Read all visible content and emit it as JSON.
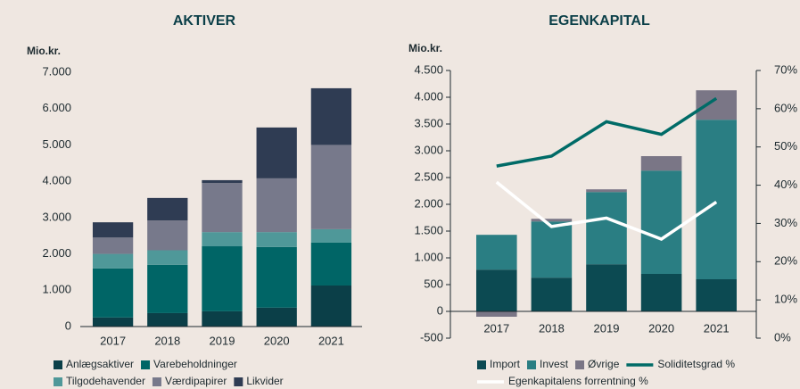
{
  "chart_data": [
    {
      "type": "bar",
      "stacked": true,
      "title": "AKTIVER",
      "y_label": "Mio.kr.",
      "categories": [
        "2017",
        "2018",
        "2019",
        "2020",
        "2021"
      ],
      "series": [
        {
          "name": "Anlægsaktiver",
          "color": "#0b3f48",
          "values": [
            250,
            370,
            420,
            520,
            1130
          ]
        },
        {
          "name": "Varebeholdninger",
          "color": "#006566",
          "values": [
            1350,
            1330,
            1790,
            1670,
            1180
          ]
        },
        {
          "name": "Tilgodehavender",
          "color": "#4f9899",
          "values": [
            400,
            400,
            390,
            410,
            370
          ]
        },
        {
          "name": "Værdipapirer",
          "color": "#77798b",
          "values": [
            450,
            820,
            1350,
            1480,
            2320
          ]
        },
        {
          "name": "Likvider",
          "color": "#2f3c53",
          "values": [
            420,
            620,
            80,
            1400,
            1560
          ]
        }
      ],
      "ylim": [
        0,
        7000
      ],
      "yticks": [
        0,
        {
          "value": 1000,
          "label": "1.000"
        },
        {
          "value": 2000,
          "label": "2.000"
        },
        {
          "value": 3000,
          "label": "3.000"
        },
        {
          "value": 4000,
          "label": "4.000"
        },
        {
          "value": 5000,
          "label": "5.000"
        },
        {
          "value": 6000,
          "label": "6.000"
        },
        {
          "value": 7000,
          "label": "7.000"
        }
      ]
    },
    {
      "type": "bar",
      "stacked": true,
      "title": "EGENKAPITAL",
      "y_label": "Mio.kr.",
      "categories": [
        "2017",
        "2018",
        "2019",
        "2020",
        "2021"
      ],
      "series": [
        {
          "name": "Import",
          "color": "#0c4a52",
          "values": [
            780,
            630,
            880,
            700,
            600
          ]
        },
        {
          "name": "Invest",
          "color": "#2a7e83",
          "values": [
            650,
            1050,
            1350,
            1930,
            2980
          ]
        },
        {
          "name": "Øvrige",
          "color": "#7a7686",
          "values": [
            -100,
            50,
            50,
            270,
            550
          ]
        },
        {
          "name": "Soliditetsgrad %",
          "color": "#006b67",
          "type": "line",
          "axis": "y2",
          "values": [
            45,
            47.6,
            56.6,
            53.3,
            62.7
          ]
        },
        {
          "name": "Egenkapitalens forrentning %",
          "color": "#ffffff",
          "type": "line",
          "axis": "y2",
          "values": [
            40.8,
            29.2,
            31.4,
            25.9,
            35.6
          ]
        }
      ],
      "ylim": [
        -500,
        4500
      ],
      "yticks": [
        -500,
        0,
        500,
        {
          "value": 1000,
          "label": "1.000"
        },
        {
          "value": 1500,
          "label": "1.500"
        },
        {
          "value": 2000,
          "label": "2.000"
        },
        {
          "value": 2500,
          "label": "2.500"
        },
        {
          "value": 3000,
          "label": "3.000"
        },
        {
          "value": 3500,
          "label": "3.500"
        },
        {
          "value": 4000,
          "label": "4.000"
        },
        {
          "value": 4500,
          "label": "4.500"
        }
      ],
      "y2lim": [
        0,
        70
      ],
      "y2ticks": [
        {
          "value": 0,
          "label": "0%"
        },
        {
          "value": 10,
          "label": "10%"
        },
        {
          "value": 20,
          "label": "20%"
        },
        {
          "value": 30,
          "label": "30%"
        },
        {
          "value": 40,
          "label": "40%"
        },
        {
          "value": 50,
          "label": "50%"
        },
        {
          "value": 60,
          "label": "60%"
        },
        {
          "value": 70,
          "label": "70%"
        }
      ]
    }
  ]
}
